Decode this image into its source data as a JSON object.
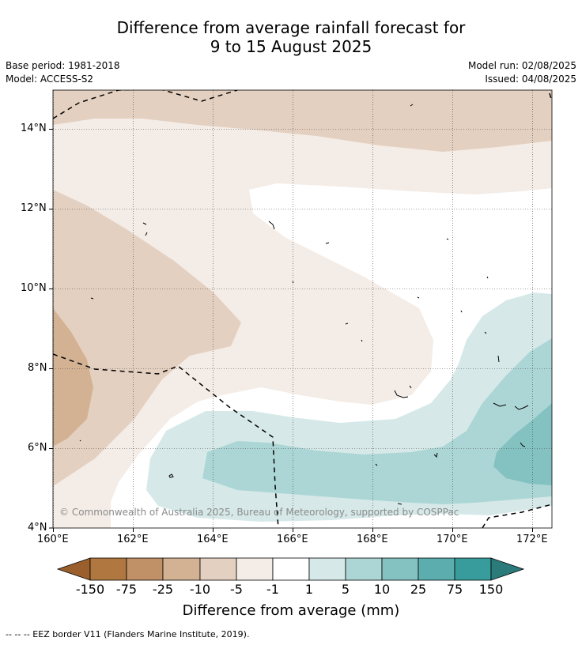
{
  "title_line1": "Difference from average rainfall forecast for",
  "title_line2": "9 to 15 August 2025",
  "base_period": "Base period: 1981-2018",
  "model": "Model: ACCESS-S2",
  "model_run": "Model run: 02/08/2025",
  "issued": "Issued: 04/08/2025",
  "copyright": "© Commonwealth of Australia 2025, Bureau of Meteorology, supported by COSPPac",
  "map": {
    "lon_range": [
      160,
      172.5
    ],
    "lat_range": [
      4,
      15
    ],
    "lon_ticks": [
      "160°E",
      "162°E",
      "164°E",
      "166°E",
      "168°E",
      "170°E",
      "172°E"
    ],
    "lat_ticks": [
      "4°N",
      "6°N",
      "8°N",
      "10°N",
      "12°N",
      "14°N"
    ],
    "grid": true
  },
  "colorbar": {
    "title": "Difference from average (mm)",
    "labels": [
      "-150",
      "-75",
      "-25",
      "-10",
      "-5",
      "-1",
      "1",
      "5",
      "10",
      "25",
      "75",
      "150"
    ],
    "colors": {
      "below_-150": "#9a5f2c",
      "-150_-75": "#b07840",
      "-75_-25": "#c09166",
      "-25_-10": "#d3b294",
      "-10_-5": "#e4d0c0",
      "-5_-1": "#f4ece6",
      "-1_1": "#ffffff",
      "1_5": "#d6e9e8",
      "5_10": "#acd6d5",
      "10_25": "#84c1c1",
      "25_75": "#5caeae",
      "75_150": "#379c9b",
      "above_150": "#2b7b7a"
    }
  },
  "footnote": "--  --  -- EEZ border V11 (Flanders Marine Institute, 2019)."
}
